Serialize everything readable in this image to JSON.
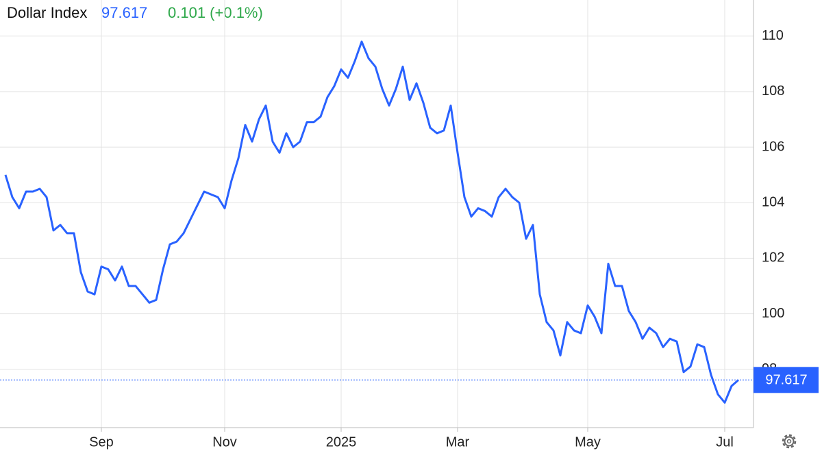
{
  "chart_data": {
    "type": "line",
    "title": "Dollar Index",
    "change": "0.101 (+0.1%)",
    "categories": [
      null,
      null,
      null,
      null,
      null,
      null,
      null,
      null,
      null,
      null,
      null,
      null,
      null,
      null,
      "Sep",
      null,
      null,
      null,
      null,
      null,
      null,
      null,
      null,
      null,
      null,
      null,
      null,
      null,
      null,
      null,
      null,
      null,
      "Nov",
      null,
      null,
      null,
      null,
      null,
      null,
      null,
      null,
      null,
      null,
      null,
      null,
      null,
      null,
      null,
      null,
      "2025",
      null,
      null,
      null,
      null,
      null,
      null,
      null,
      null,
      null,
      null,
      null,
      null,
      null,
      null,
      null,
      null,
      "Mar",
      null,
      null,
      null,
      null,
      null,
      null,
      null,
      null,
      null,
      null,
      null,
      null,
      null,
      null,
      null,
      null,
      null,
      null,
      "May",
      null,
      null,
      null,
      null,
      null,
      null,
      null,
      null,
      null,
      null,
      null,
      null,
      null,
      null,
      null,
      null,
      null,
      null,
      null,
      "Jul",
      null,
      null
    ],
    "series": [
      {
        "color": "#2962ff",
        "values": [
          105.0,
          104.2,
          103.8,
          104.4,
          104.4,
          104.5,
          104.2,
          103.0,
          103.2,
          102.9,
          102.9,
          101.5,
          100.8,
          100.7,
          101.7,
          101.6,
          101.2,
          101.7,
          101.0,
          101.0,
          100.7,
          100.4,
          100.5,
          101.6,
          102.5,
          102.6,
          102.9,
          103.4,
          103.9,
          104.4,
          104.3,
          104.2,
          103.8,
          104.8,
          105.6,
          106.8,
          106.2,
          107.0,
          107.5,
          106.2,
          105.8,
          106.5,
          106.0,
          106.2,
          106.9,
          106.9,
          107.1,
          107.8,
          108.2,
          108.8,
          108.5,
          109.1,
          109.8,
          109.2,
          108.9,
          108.1,
          107.5,
          108.1,
          108.9,
          107.7,
          108.3,
          107.6,
          106.7,
          106.5,
          106.6,
          107.5,
          105.8,
          104.2,
          103.5,
          103.8,
          103.7,
          103.5,
          104.2,
          104.5,
          104.2,
          104.0,
          102.7,
          103.2,
          100.7,
          99.7,
          99.4,
          98.5,
          99.7,
          99.4,
          99.3,
          100.3,
          99.9,
          99.3,
          101.8,
          101.0,
          101.0,
          100.1,
          99.7,
          99.1,
          99.5,
          99.3,
          98.8,
          99.1,
          99.0,
          97.9,
          98.1,
          98.9,
          98.8,
          97.8,
          97.1,
          96.8,
          97.4,
          97.617
        ]
      }
    ],
    "ylim": [
      95.9,
      111.3
    ],
    "yticks": [
      98,
      100,
      102,
      104,
      106,
      108,
      110
    ],
    "grid": true
  }
}
